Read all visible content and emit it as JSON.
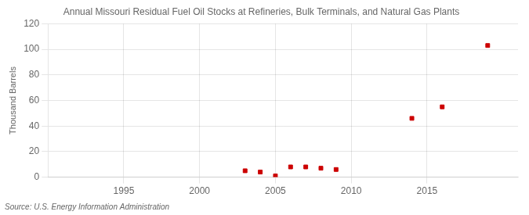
{
  "chart_data": {
    "type": "scatter",
    "title": "Annual Missouri Residual Fuel Oil Stocks at Refineries, Bulk Terminals, and Natural Gas Plants",
    "ylabel": "Thousand Barrels",
    "annotation": "Source: U.S. Energy Information Administration",
    "x": [
      2003,
      2004,
      2005,
      2006,
      2007,
      2008,
      2009,
      2014,
      2016,
      2019
    ],
    "values": [
      5,
      4,
      1,
      8,
      8,
      7,
      6,
      46,
      55,
      103
    ],
    "color": "#cc0000",
    "marker": "square",
    "xlim": [
      1990,
      2021
    ],
    "xticks": [
      1995,
      2000,
      2005,
      2010,
      2015
    ],
    "ylim": [
      0,
      120
    ],
    "yticks": [
      0,
      20,
      40,
      60,
      80,
      100,
      120
    ],
    "grid": true
  }
}
